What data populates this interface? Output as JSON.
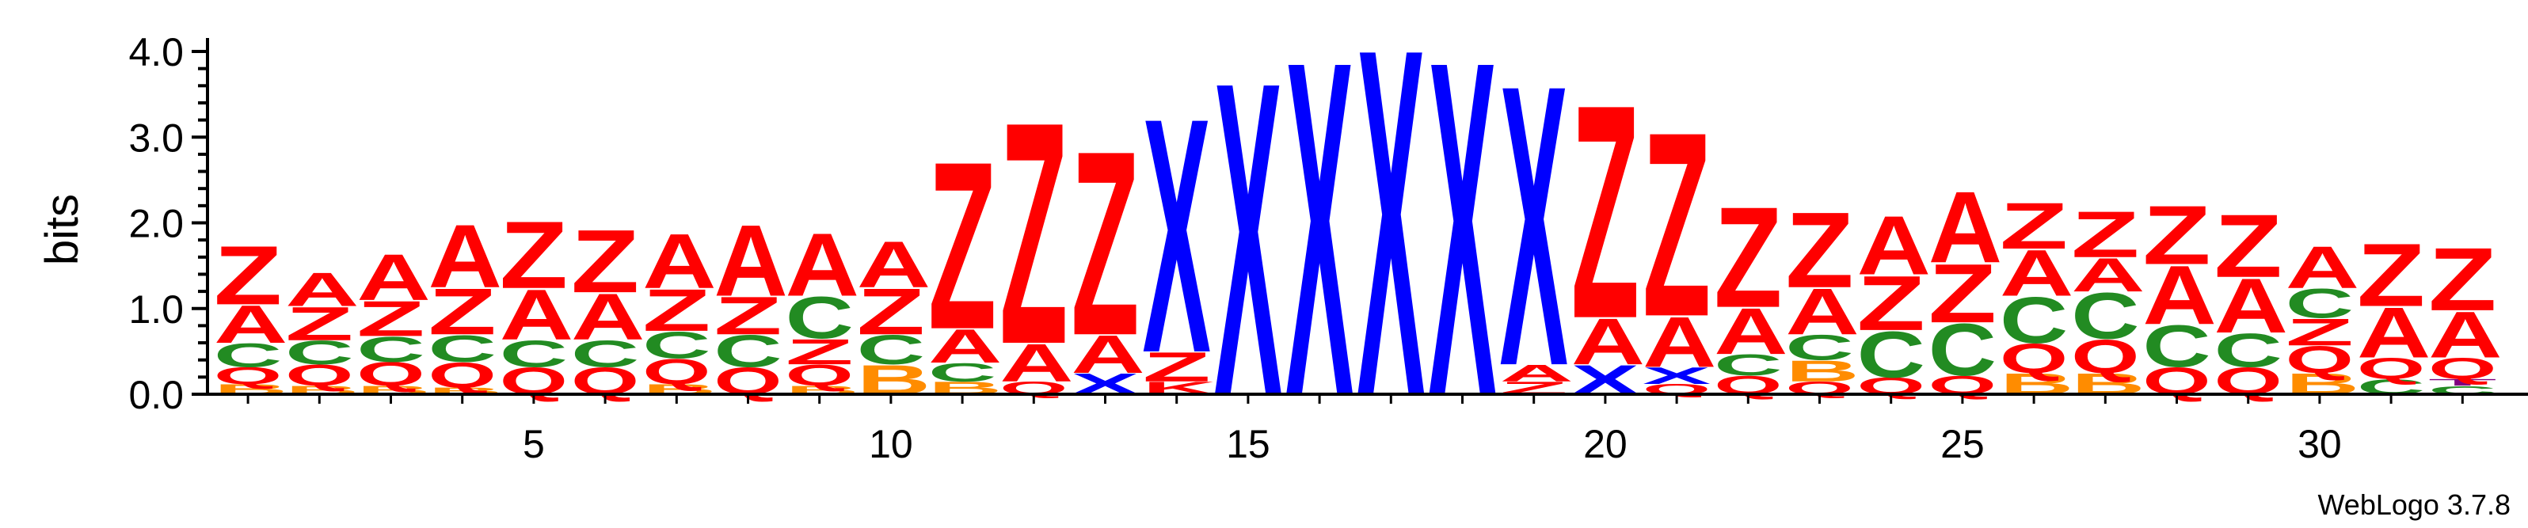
{
  "chart_data": {
    "type": "sequence-logo",
    "ylabel": "bits",
    "ylim": [
      0,
      4.2
    ],
    "yticks": [
      "0.0",
      "1.0",
      "2.0",
      "3.0",
      "4.0"
    ],
    "xticks": [
      5,
      10,
      15,
      20,
      25,
      30
    ],
    "credit": "WebLogo 3.7.8",
    "colors": {
      "A": "#ff0000",
      "Z": "#ff0000",
      "C": "#228b22",
      "Q": "#ff0000",
      "B": "#ff8c00",
      "X": "#0000ff",
      "K": "#ff0000",
      "T": "#800080"
    },
    "positions": [
      {
        "pos": 1,
        "stack": [
          [
            "B",
            0.12
          ],
          [
            "Q",
            0.2
          ],
          [
            "C",
            0.28
          ],
          [
            "A",
            0.45
          ],
          [
            "Z",
            0.7
          ]
        ]
      },
      {
        "pos": 2,
        "stack": [
          [
            "B",
            0.1
          ],
          [
            "Q",
            0.25
          ],
          [
            "C",
            0.28
          ],
          [
            "Z",
            0.4
          ],
          [
            "A",
            0.4
          ]
        ]
      },
      {
        "pos": 3,
        "stack": [
          [
            "B",
            0.1
          ],
          [
            "Q",
            0.28
          ],
          [
            "C",
            0.3
          ],
          [
            "Z",
            0.42
          ],
          [
            "A",
            0.55
          ]
        ]
      },
      {
        "pos": 4,
        "stack": [
          [
            "B",
            0.08
          ],
          [
            "Q",
            0.3
          ],
          [
            "C",
            0.32
          ],
          [
            "Z",
            0.55
          ],
          [
            "A",
            0.75
          ]
        ]
      },
      {
        "pos": 5,
        "stack": [
          [
            "Q",
            0.32
          ],
          [
            "C",
            0.32
          ],
          [
            "A",
            0.6
          ],
          [
            "Z",
            0.8
          ]
        ]
      },
      {
        "pos": 6,
        "stack": [
          [
            "Q",
            0.32
          ],
          [
            "C",
            0.32
          ],
          [
            "A",
            0.55
          ],
          [
            "Z",
            0.75
          ]
        ]
      },
      {
        "pos": 7,
        "stack": [
          [
            "B",
            0.12
          ],
          [
            "Q",
            0.3
          ],
          [
            "C",
            0.32
          ],
          [
            "Z",
            0.5
          ],
          [
            "A",
            0.65
          ]
        ]
      },
      {
        "pos": 8,
        "stack": [
          [
            "Q",
            0.32
          ],
          [
            "C",
            0.38
          ],
          [
            "Z",
            0.45
          ],
          [
            "A",
            0.85
          ]
        ]
      },
      {
        "pos": 9,
        "stack": [
          [
            "B",
            0.1
          ],
          [
            "Q",
            0.25
          ],
          [
            "Z",
            0.3
          ],
          [
            "C",
            0.5
          ],
          [
            "A",
            0.75
          ]
        ]
      },
      {
        "pos": 10,
        "stack": [
          [
            "B",
            0.35
          ],
          [
            "C",
            0.35
          ],
          [
            "Z",
            0.55
          ],
          [
            "A",
            0.55
          ]
        ]
      },
      {
        "pos": 11,
        "stack": [
          [
            "B",
            0.15
          ],
          [
            "C",
            0.22
          ],
          [
            "A",
            0.4
          ],
          [
            "Z",
            2.0
          ]
        ]
      },
      {
        "pos": 12,
        "stack": [
          [
            "Q",
            0.15
          ],
          [
            "A",
            0.45
          ],
          [
            "Z",
            2.65
          ]
        ]
      },
      {
        "pos": 13,
        "stack": [
          [
            "X",
            0.25
          ],
          [
            "A",
            0.45
          ],
          [
            "Z",
            2.2
          ]
        ]
      },
      {
        "pos": 14,
        "stack": [
          [
            "K",
            0.15
          ],
          [
            "Z",
            0.35
          ],
          [
            "X",
            2.8
          ]
        ]
      },
      {
        "pos": 15,
        "stack": [
          [
            "X",
            3.75
          ]
        ]
      },
      {
        "pos": 16,
        "stack": [
          [
            "X",
            4.0
          ]
        ]
      },
      {
        "pos": 17,
        "stack": [
          [
            "X",
            4.15
          ]
        ]
      },
      {
        "pos": 18,
        "stack": [
          [
            "X",
            4.0
          ]
        ]
      },
      {
        "pos": 19,
        "stack": [
          [
            "Z",
            0.15
          ],
          [
            "A",
            0.2
          ],
          [
            "X",
            3.35
          ]
        ]
      },
      {
        "pos": 20,
        "stack": [
          [
            "X",
            0.35
          ],
          [
            "A",
            0.55
          ],
          [
            "Z",
            2.55
          ]
        ]
      },
      {
        "pos": 21,
        "stack": [
          [
            "Q",
            0.12
          ],
          [
            "X",
            0.2
          ],
          [
            "A",
            0.6
          ],
          [
            "Z",
            2.2
          ]
        ]
      },
      {
        "pos": 22,
        "stack": [
          [
            "Q",
            0.22
          ],
          [
            "C",
            0.25
          ],
          [
            "A",
            0.55
          ],
          [
            "Z",
            1.2
          ]
        ]
      },
      {
        "pos": 23,
        "stack": [
          [
            "Q",
            0.15
          ],
          [
            "B",
            0.25
          ],
          [
            "C",
            0.3
          ],
          [
            "A",
            0.55
          ],
          [
            "Z",
            0.9
          ]
        ]
      },
      {
        "pos": 24,
        "stack": [
          [
            "Q",
            0.2
          ],
          [
            "C",
            0.55
          ],
          [
            "Z",
            0.65
          ],
          [
            "A",
            0.7
          ]
        ]
      },
      {
        "pos": 25,
        "stack": [
          [
            "Q",
            0.22
          ],
          [
            "C",
            0.62
          ],
          [
            "Z",
            0.7
          ],
          [
            "A",
            0.85
          ]
        ]
      },
      {
        "pos": 26,
        "stack": [
          [
            "B",
            0.25
          ],
          [
            "Q",
            0.35
          ],
          [
            "C",
            0.55
          ],
          [
            "A",
            0.55
          ],
          [
            "Z",
            0.55
          ]
        ]
      },
      {
        "pos": 27,
        "stack": [
          [
            "B",
            0.25
          ],
          [
            "Q",
            0.4
          ],
          [
            "C",
            0.55
          ],
          [
            "A",
            0.4
          ],
          [
            "Z",
            0.55
          ]
        ]
      },
      {
        "pos": 28,
        "stack": [
          [
            "Q",
            0.32
          ],
          [
            "C",
            0.5
          ],
          [
            "A",
            0.7
          ],
          [
            "Z",
            0.7
          ]
        ]
      },
      {
        "pos": 29,
        "stack": [
          [
            "Q",
            0.32
          ],
          [
            "C",
            0.4
          ],
          [
            "A",
            0.65
          ],
          [
            "Z",
            0.75
          ]
        ]
      },
      {
        "pos": 30,
        "stack": [
          [
            "B",
            0.25
          ],
          [
            "Q",
            0.32
          ],
          [
            "Z",
            0.32
          ],
          [
            "C",
            0.35
          ],
          [
            "A",
            0.5
          ]
        ]
      },
      {
        "pos": 31,
        "stack": [
          [
            "C",
            0.18
          ],
          [
            "Q",
            0.25
          ],
          [
            "A",
            0.6
          ],
          [
            "Z",
            0.75
          ]
        ]
      },
      {
        "pos": 32,
        "stack": [
          [
            "C",
            0.1
          ],
          [
            "T",
            0.08
          ],
          [
            "Q",
            0.25
          ],
          [
            "A",
            0.55
          ],
          [
            "Z",
            0.75
          ]
        ]
      }
    ]
  }
}
